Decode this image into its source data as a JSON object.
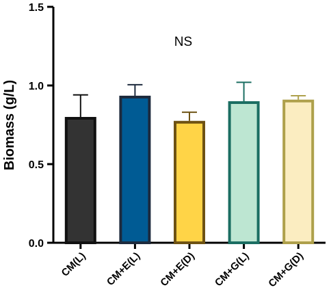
{
  "chart_data": {
    "type": "bar",
    "categories": [
      "CM(L)",
      "CM+E(L)",
      "CM+E(D)",
      "CM+G(L)",
      "CM+G(D)"
    ],
    "values": [
      0.8,
      0.935,
      0.775,
      0.9,
      0.91
    ],
    "error_upper": [
      0.14,
      0.07,
      0.055,
      0.12,
      0.025
    ],
    "fill_colors": [
      "#333333",
      "#005b94",
      "#ffd447",
      "#bde6d2",
      "#fbedc1"
    ],
    "edge_colors": [
      "#111111",
      "#1d2a3d",
      "#6e5213",
      "#1b6e62",
      "#aea04b"
    ],
    "title": "",
    "xlabel": "",
    "ylabel": "Biomass (g/L)",
    "ylim": [
      0,
      1.5
    ],
    "yticks": [
      "0.0",
      "0.5",
      "1.0",
      "1.5"
    ],
    "annotation": "NS",
    "grid": false,
    "legend": "none"
  }
}
